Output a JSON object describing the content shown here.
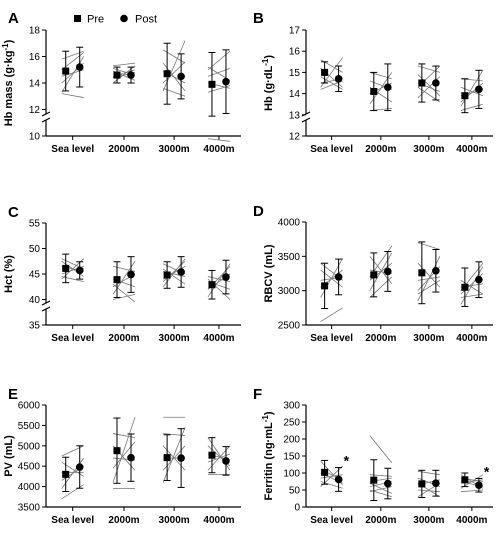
{
  "legend": {
    "pre_label": "Pre",
    "post_label": "Post"
  },
  "chart_data": [
    {
      "panel": "A",
      "type": "scatter",
      "ylabel": "Hb mass (g·kg⁻¹)",
      "ylabel_main": "Hb mass (g·kg",
      "ylabel_sup": "-1",
      "ylabel_close": ")",
      "categories": [
        "Sea level",
        "2000m",
        "3000m",
        "4000m"
      ],
      "y_ticks": [
        10,
        12,
        14,
        16,
        18
      ],
      "y_break": true,
      "ylim": [
        10,
        18
      ],
      "series": [
        {
          "name": "Pre",
          "values": [
            14.9,
            14.6,
            14.7,
            13.9
          ],
          "err": [
            1.5,
            0.6,
            2.3,
            2.4
          ]
        },
        {
          "name": "Post",
          "values": [
            15.2,
            14.6,
            14.5,
            14.1
          ],
          "err": [
            1.5,
            0.6,
            1.7,
            2.4
          ]
        }
      ],
      "individuals": [
        [
          [
            13.3,
            16.0
          ],
          [
            14.0,
            15.5
          ],
          [
            14.5,
            15.0
          ],
          [
            15.0,
            16.3
          ],
          [
            15.8,
            16.4
          ],
          [
            13.2,
            12.9
          ]
        ],
        [
          [
            14.0,
            15.3
          ],
          [
            14.4,
            14.8
          ],
          [
            15.1,
            14.6
          ],
          [
            14.9,
            14.2
          ],
          [
            14.5,
            15.0
          ],
          [
            15.3,
            15.5
          ]
        ],
        [
          [
            13.4,
            17.2
          ],
          [
            14.0,
            15.6
          ],
          [
            14.9,
            14.0
          ],
          [
            15.5,
            13.4
          ],
          [
            16.5,
            15.5
          ],
          [
            13.6,
            13.0
          ]
        ],
        [
          [
            15.0,
            16.4
          ],
          [
            14.5,
            15.1
          ],
          [
            14.0,
            13.6
          ],
          [
            13.3,
            13.8
          ],
          [
            15.2,
            14.2
          ],
          [
            9.8,
            9.6
          ]
        ]
      ]
    },
    {
      "panel": "B",
      "type": "scatter",
      "ylabel": "Hb (g·dL⁻¹)",
      "ylabel_main": "Hb (g·dL",
      "ylabel_sup": "-1",
      "ylabel_close": ")",
      "categories": [
        "Sea level",
        "2000m",
        "3000m",
        "4000m"
      ],
      "y_ticks": [
        12,
        13,
        14,
        15,
        16,
        17
      ],
      "y_break": true,
      "ylim": [
        12,
        17
      ],
      "series": [
        {
          "name": "Pre",
          "values": [
            15.0,
            14.1,
            14.5,
            13.9
          ],
          "err": [
            0.5,
            0.9,
            0.9,
            0.8
          ]
        },
        {
          "name": "Post",
          "values": [
            14.7,
            14.3,
            14.5,
            14.2
          ],
          "err": [
            0.6,
            1.1,
            0.8,
            0.9
          ]
        }
      ],
      "individuals": [
        [
          [
            14.3,
            15.7
          ],
          [
            14.5,
            14.7
          ],
          [
            15.2,
            14.3
          ],
          [
            14.8,
            14.2
          ],
          [
            15.6,
            15.0
          ],
          [
            14.2,
            14.6
          ]
        ],
        [
          [
            13.5,
            15.0
          ],
          [
            14.0,
            14.5
          ],
          [
            14.6,
            14.2
          ],
          [
            13.2,
            13.3
          ],
          [
            15.0,
            14.7
          ],
          [
            14.3,
            13.6
          ]
        ],
        [
          [
            14.3,
            15.3
          ],
          [
            13.8,
            14.8
          ],
          [
            14.5,
            14.1
          ],
          [
            14.9,
            13.9
          ],
          [
            14.3,
            13.6
          ],
          [
            15.3,
            15.0
          ]
        ],
        [
          [
            13.4,
            15.1
          ],
          [
            13.6,
            14.5
          ],
          [
            14.3,
            13.9
          ],
          [
            13.9,
            14.2
          ],
          [
            13.2,
            13.5
          ],
          [
            14.7,
            14.6
          ]
        ]
      ]
    },
    {
      "panel": "C",
      "type": "scatter",
      "ylabel": "Hct (%)",
      "ylabel_main": "Hct (%)",
      "ylabel_sup": "",
      "ylabel_close": "",
      "categories": [
        "Sea level",
        "2000m",
        "3000m",
        "4000m"
      ],
      "y_ticks": [
        35,
        40,
        45,
        50,
        55
      ],
      "y_break": true,
      "ylim": [
        35,
        55
      ],
      "series": [
        {
          "name": "Pre",
          "values": [
            46.1,
            43.9,
            44.8,
            42.9
          ],
          "err": [
            2.8,
            3.5,
            2.6,
            2.8
          ]
        },
        {
          "name": "Post",
          "values": [
            45.7,
            44.9,
            45.4,
            44.4
          ],
          "err": [
            1.7,
            3.5,
            3.0,
            3.3
          ]
        }
      ],
      "individuals": [
        [
          [
            44.0,
            48.0
          ],
          [
            45.0,
            46.5
          ],
          [
            46.5,
            45.5
          ],
          [
            47.5,
            44.5
          ],
          [
            44.5,
            43.5
          ],
          [
            48.0,
            46.0
          ]
        ],
        [
          [
            41.0,
            47.5
          ],
          [
            42.5,
            45.0
          ],
          [
            44.0,
            42.5
          ],
          [
            40.0,
            41.0
          ],
          [
            46.5,
            45.5
          ],
          [
            43.0,
            39.5
          ]
        ],
        [
          [
            42.5,
            48.0
          ],
          [
            44.0,
            46.5
          ],
          [
            45.5,
            44.5
          ],
          [
            46.0,
            43.0
          ],
          [
            43.5,
            47.5
          ],
          [
            47.0,
            45.0
          ]
        ],
        [
          [
            40.5,
            47.0
          ],
          [
            42.0,
            45.0
          ],
          [
            44.5,
            43.5
          ],
          [
            43.5,
            42.0
          ],
          [
            42.0,
            46.5
          ],
          [
            44.0,
            40.0
          ]
        ]
      ]
    },
    {
      "panel": "D",
      "type": "scatter",
      "ylabel": "RBCV (mL)",
      "ylabel_main": "RBCV (mL)",
      "ylabel_sup": "",
      "ylabel_close": "",
      "categories": [
        "Sea level",
        "2000m",
        "3000m",
        "4000m"
      ],
      "y_ticks": [
        2500,
        3000,
        3500,
        4000
      ],
      "y_break": false,
      "ylim": [
        2500,
        4000
      ],
      "series": [
        {
          "name": "Pre",
          "values": [
            3070,
            3230,
            3260,
            3050
          ],
          "err": [
            330,
            320,
            450,
            280
          ]
        },
        {
          "name": "Post",
          "values": [
            3200,
            3280,
            3290,
            3160
          ],
          "err": [
            260,
            290,
            310,
            260
          ]
        }
      ],
      "individuals": [
        [
          [
            2900,
            3470
          ],
          [
            3050,
            3300
          ],
          [
            3150,
            3200
          ],
          [
            3300,
            3050
          ],
          [
            2550,
            2750
          ],
          [
            3400,
            3150
          ]
        ],
        [
          [
            3000,
            3550
          ],
          [
            3150,
            3400
          ],
          [
            3300,
            3250
          ],
          [
            3500,
            3100
          ],
          [
            2900,
            3200
          ],
          [
            3200,
            3650
          ]
        ],
        [
          [
            2850,
            3500
          ],
          [
            3000,
            3350
          ],
          [
            3150,
            3200
          ],
          [
            3400,
            3050
          ],
          [
            3700,
            3600
          ],
          [
            2950,
            3150
          ]
        ],
        [
          [
            2800,
            3350
          ],
          [
            2950,
            3250
          ],
          [
            3050,
            3100
          ],
          [
            3150,
            2950
          ],
          [
            3000,
            3400
          ],
          [
            2900,
            2950
          ]
        ]
      ]
    },
    {
      "panel": "E",
      "type": "scatter",
      "ylabel": "PV (mL)",
      "ylabel_main": "PV (mL)",
      "ylabel_sup": "",
      "ylabel_close": "",
      "categories": [
        "Sea level",
        "2000m",
        "3000m",
        "4000m"
      ],
      "y_ticks": [
        3500,
        4000,
        4500,
        5000,
        5500,
        6000
      ],
      "y_break": false,
      "ylim": [
        3500,
        6000
      ],
      "series": [
        {
          "name": "Pre",
          "values": [
            4300,
            4880,
            4710,
            4770
          ],
          "err": [
            420,
            800,
            560,
            430
          ]
        },
        {
          "name": "Post",
          "values": [
            4480,
            4710,
            4700,
            4630
          ],
          "err": [
            520,
            580,
            720,
            350
          ]
        }
      ],
      "individuals": [
        [
          [
            3950,
            4700
          ],
          [
            4150,
            4500
          ],
          [
            4350,
            4350
          ],
          [
            4600,
            4250
          ],
          [
            3700,
            4050
          ],
          [
            4750,
            5000
          ]
        ],
        [
          [
            4100,
            5700
          ],
          [
            4450,
            5100
          ],
          [
            4700,
            4650
          ],
          [
            5000,
            4400
          ],
          [
            5300,
            5200
          ],
          [
            3950,
            3950
          ]
        ],
        [
          [
            4100,
            5450
          ],
          [
            4400,
            5000
          ],
          [
            4700,
            4700
          ],
          [
            5000,
            4400
          ],
          [
            5300,
            5250
          ],
          [
            5700,
            5700
          ]
        ],
        [
          [
            4400,
            5000
          ],
          [
            4600,
            4800
          ],
          [
            4800,
            4650
          ],
          [
            5000,
            4500
          ],
          [
            5200,
            4400
          ],
          [
            4300,
            4300
          ]
        ]
      ]
    },
    {
      "panel": "F",
      "type": "scatter",
      "ylabel": "Ferritin (ng·mL⁻¹)",
      "ylabel_main": "Ferritin (ng·mL",
      "ylabel_sup": "-1",
      "ylabel_close": ")",
      "categories": [
        "Sea level",
        "2000m",
        "3000m",
        "4000m"
      ],
      "y_ticks": [
        0,
        50,
        100,
        150,
        200,
        250,
        300
      ],
      "y_break": false,
      "ylim": [
        0,
        300
      ],
      "series": [
        {
          "name": "Pre",
          "values": [
            102,
            79,
            68,
            80
          ],
          "err": [
            35,
            60,
            40,
            20
          ]
        },
        {
          "name": "Post",
          "values": [
            81,
            69,
            70,
            64
          ],
          "err": [
            35,
            45,
            38,
            20
          ]
        }
      ],
      "significance": [
        "*",
        "",
        "",
        "*"
      ],
      "individuals": [
        [
          [
            60,
            120
          ],
          [
            85,
            95
          ],
          [
            110,
            80
          ],
          [
            135,
            65
          ],
          [
            100,
            70
          ],
          [
            75,
            55
          ]
        ],
        [
          [
            45,
            60
          ],
          [
            60,
            75
          ],
          [
            75,
            85
          ],
          [
            95,
            90
          ],
          [
            50,
            30
          ],
          [
            210,
            130
          ],
          [
            70,
            40
          ]
        ],
        [
          [
            30,
            70
          ],
          [
            50,
            45
          ],
          [
            65,
            80
          ],
          [
            85,
            60
          ],
          [
            105,
            95
          ],
          [
            70,
            30
          ]
        ],
        [
          [
            55,
            95
          ],
          [
            70,
            80
          ],
          [
            85,
            75
          ],
          [
            95,
            55
          ],
          [
            75,
            60
          ],
          [
            45,
            50
          ]
        ]
      ]
    }
  ]
}
